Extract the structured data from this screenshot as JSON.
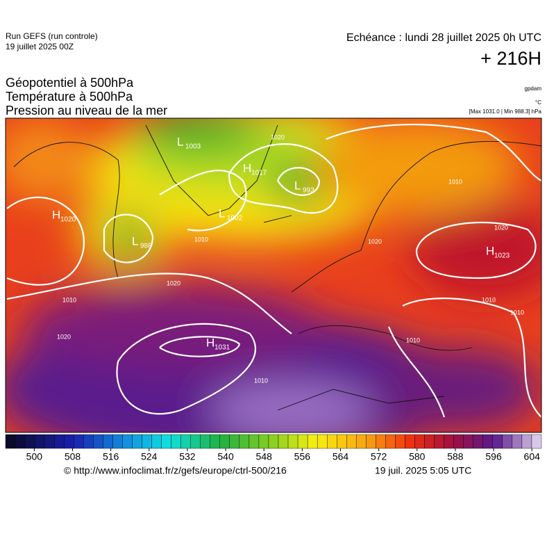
{
  "header": {
    "run": "Run GEFS (run controle)",
    "run_date": "19 juillet 2025 00Z",
    "valid": "Echéance : lundi 28 juillet 2025 0h UTC",
    "lead": "+ 216H"
  },
  "titles": [
    "Géopotentiel à 500hPa",
    "Température à 500hPa",
    "Pression au niveau de la mer"
  ],
  "units": {
    "geopotential": "gpdam",
    "temperature": "°C",
    "pressure": "[Max 1031.0 | Min 988.3] hPa"
  },
  "centers": [
    {
      "letter": "H",
      "value": 1020
    },
    {
      "letter": "L",
      "value": 988
    },
    {
      "letter": "L",
      "value": 1003
    },
    {
      "letter": "H",
      "value": 1017
    },
    {
      "letter": "L",
      "value": 993
    },
    {
      "letter": "L",
      "value": 1002
    },
    {
      "letter": "H",
      "value": 1031
    },
    {
      "letter": "H",
      "value": 1023
    }
  ],
  "isobar_labels": [
    1010,
    1020,
    1010,
    1020,
    1010,
    1020,
    1020,
    1010,
    1010,
    1010,
    1020,
    1010
  ],
  "colorbar": {
    "range": [
      494,
      606
    ],
    "ticks": [
      500,
      508,
      516,
      524,
      532,
      540,
      548,
      556,
      564,
      572,
      580,
      588,
      596,
      604
    ]
  },
  "footer": {
    "source": "© http://www.infoclimat.fr/z/gefs/europe/ctrl-500/216",
    "issued": "19 juil. 2025  5:05 UTC"
  }
}
